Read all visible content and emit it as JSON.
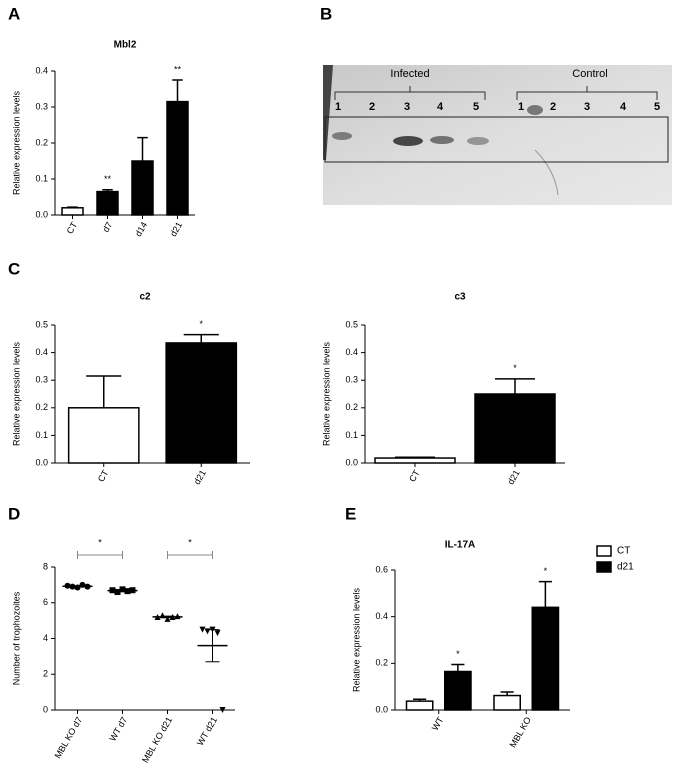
{
  "chart_data": [
    {
      "type": "bar",
      "panel": "A",
      "title": "Mbl2",
      "ylabel": "Relative expression levels",
      "categories": [
        "CT",
        "d7",
        "d14",
        "d21"
      ],
      "values": [
        0.02,
        0.065,
        0.15,
        0.315
      ],
      "errors": [
        0.002,
        0.005,
        0.065,
        0.06
      ],
      "colors": [
        "#ffffff",
        "#000000",
        "#000000",
        "#000000"
      ],
      "significance": [
        null,
        "**",
        null,
        "**"
      ],
      "ylim": [
        0,
        0.4
      ],
      "yticks": [
        {
          "value": 0,
          "label": "0.0"
        },
        0.1,
        0.2,
        0.3,
        0.4
      ]
    },
    {
      "type": "bar",
      "panel": "C",
      "title": "c2",
      "ylabel": "Relative expression levels",
      "categories": [
        "CT",
        "d21"
      ],
      "values": [
        0.2,
        0.435
      ],
      "errors": [
        0.115,
        0.03
      ],
      "colors": [
        "#ffffff",
        "#000000"
      ],
      "significance": [
        null,
        "*"
      ],
      "ylim": [
        0,
        0.5
      ],
      "yticks": [
        {
          "value": 0,
          "label": "0.0"
        },
        0.1,
        0.2,
        0.3,
        0.4,
        0.5
      ]
    },
    {
      "type": "bar",
      "title": "c3",
      "ylabel": "Relative expression levels",
      "categories": [
        "CT",
        "d21"
      ],
      "values": [
        0.018,
        0.25
      ],
      "errors": [
        0.003,
        0.055
      ],
      "colors": [
        "#ffffff",
        "#000000"
      ],
      "significance": [
        null,
        "*"
      ],
      "ylim": [
        0,
        0.5
      ],
      "yticks": [
        {
          "value": 0,
          "label": "0.0"
        },
        0.1,
        0.2,
        0.3,
        0.4,
        0.5
      ]
    },
    {
      "type": "dot",
      "panel": "D",
      "ylabel": "Number of trophozoites",
      "categories": [
        "MBL KO d7",
        "WT d7",
        "MBL KO d21",
        "WT d21"
      ],
      "points": [
        [
          6.95,
          6.9,
          6.85,
          7.0,
          6.9
        ],
        [
          6.7,
          6.6,
          6.75,
          6.65,
          6.7
        ],
        [
          5.2,
          5.3,
          5.1,
          5.2,
          5.25
        ],
        [
          4.5,
          4.4,
          4.5,
          4.3,
          0
        ]
      ],
      "means": [
        6.92,
        6.68,
        5.21,
        3.6
      ],
      "errors": [
        0.03,
        0.03,
        0.04,
        0.9
      ],
      "markers": [
        "circle",
        "square",
        "triangle-up",
        "triangle-down"
      ],
      "color": "#000000",
      "comparisons": [
        {
          "pair": [
            0,
            1
          ],
          "label": "*"
        },
        {
          "pair": [
            2,
            3
          ],
          "label": "*"
        }
      ],
      "ylim": [
        0,
        8
      ],
      "yticks": [
        0,
        2,
        4,
        6,
        8
      ]
    },
    {
      "type": "bar",
      "panel": "E",
      "title": "IL-17A",
      "ylabel": "Relative expression levels",
      "categories": [
        "WT",
        "MBL KO"
      ],
      "series": [
        {
          "name": "CT",
          "color": "#ffffff",
          "values": [
            0.038,
            0.062
          ],
          "errors": [
            0.008,
            0.015
          ]
        },
        {
          "name": "d21",
          "color": "#000000",
          "values": [
            0.165,
            0.44
          ],
          "errors": [
            0.03,
            0.11
          ],
          "significance": [
            "*",
            "*"
          ]
        }
      ],
      "legend": "top-right",
      "ylim": [
        0,
        0.6
      ],
      "yticks": [
        {
          "value": 0,
          "label": "0.0"
        },
        0.2,
        0.4,
        0.6
      ]
    }
  ],
  "blot": {
    "panel": "B",
    "groups": [
      {
        "label": "Infected",
        "lanes": [
          "1",
          "2",
          "3",
          "4",
          "5"
        ]
      },
      {
        "label": "Control",
        "lanes": [
          "1",
          "2",
          "3",
          "4",
          "5"
        ]
      }
    ]
  }
}
